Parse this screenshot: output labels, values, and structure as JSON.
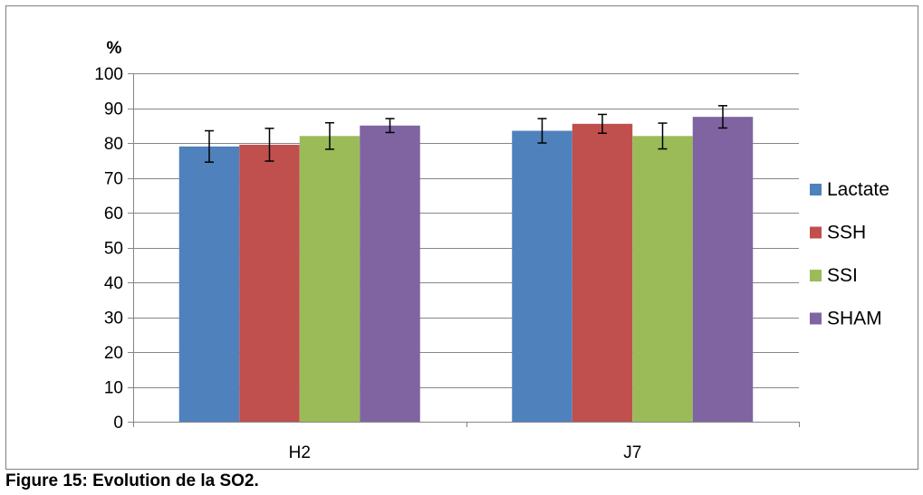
{
  "caption": "Figure 15: Evolution de la SO2.",
  "chart_data": {
    "type": "bar",
    "title": "",
    "ylabel": "%",
    "xlabel": "",
    "ylim": [
      0,
      100
    ],
    "yticks": [
      0,
      10,
      20,
      30,
      40,
      50,
      60,
      70,
      80,
      90,
      100
    ],
    "grid": true,
    "legend_position": "right",
    "categories": [
      "H2",
      "J7"
    ],
    "series": [
      {
        "name": "Lactate",
        "color": "#4F81BD",
        "values": [
          79,
          83.5
        ],
        "errors": [
          4.5,
          3.5
        ]
      },
      {
        "name": "SSH",
        "color": "#C0504D",
        "values": [
          79.5,
          85.5
        ],
        "errors": [
          4.7,
          2.7
        ]
      },
      {
        "name": "SSI",
        "color": "#9BBB59",
        "values": [
          82,
          82
        ],
        "errors": [
          3.8,
          3.7
        ]
      },
      {
        "name": "SHAM",
        "color": "#8064A2",
        "values": [
          85,
          87.5
        ],
        "errors": [
          2.0,
          3.2
        ]
      }
    ]
  }
}
